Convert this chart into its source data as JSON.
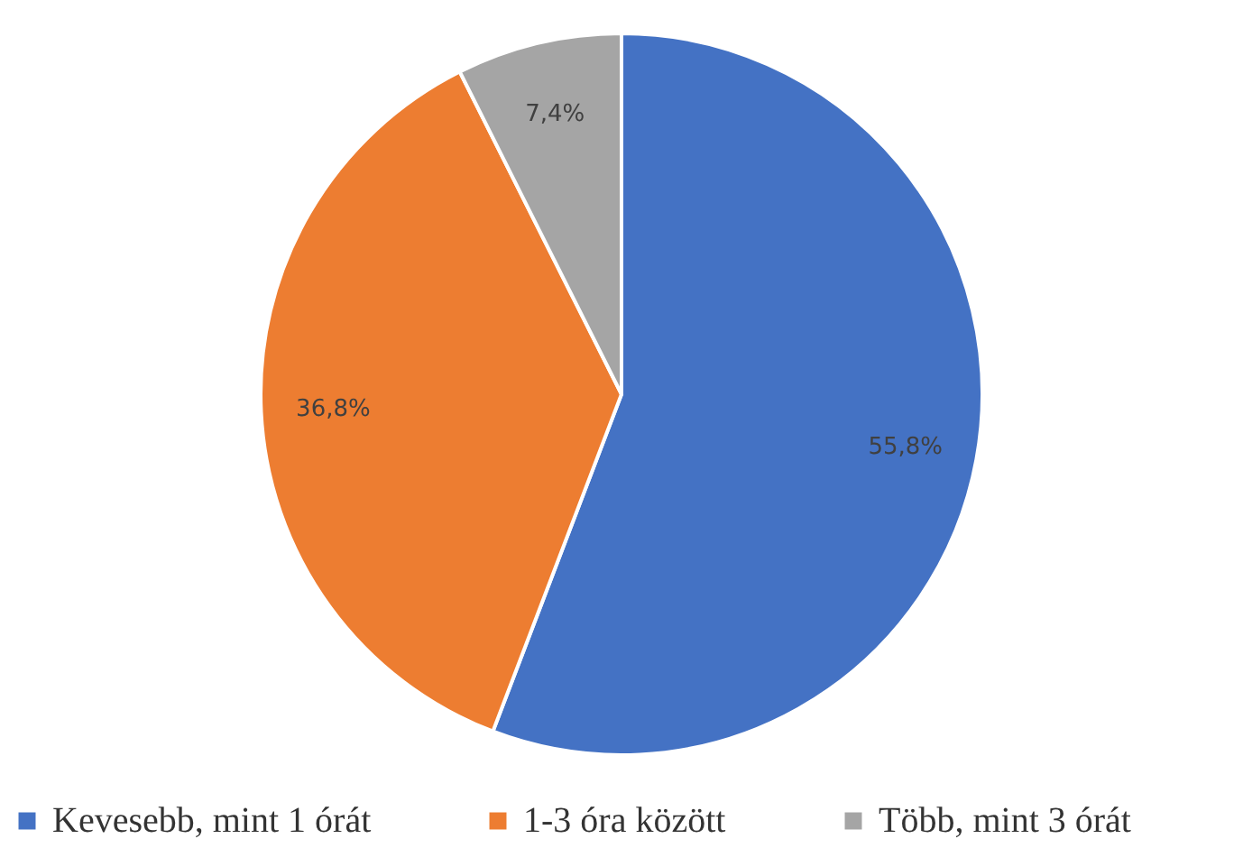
{
  "chart_data": {
    "type": "pie",
    "categories": [
      "Kevesebb, mint 1 órát",
      "1-3 óra között",
      "Több, mint 3 órát"
    ],
    "values": [
      55.8,
      36.8,
      7.4
    ],
    "colors": [
      "#4472c4",
      "#ed7d31",
      "#a5a5a5"
    ],
    "value_labels": [
      "55,8%",
      "36,8%",
      "7,4%"
    ],
    "legend": "bottom"
  }
}
